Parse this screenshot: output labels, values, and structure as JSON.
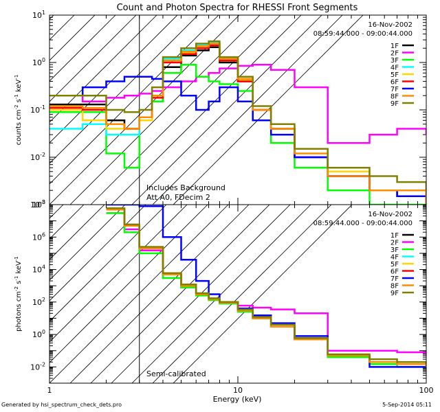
{
  "chart_data": {
    "type": "line",
    "title": "Count and Photon Spectra for RHESSI Front Segments",
    "xlabel": "Energy (keV)",
    "x_scale": "log",
    "xlim": [
      1,
      100
    ],
    "x_ticks": [
      "1",
      "10",
      "100"
    ],
    "x_tick_values": [
      1,
      10,
      100
    ],
    "legend_entries": [
      "1F",
      "2F",
      "3F",
      "4F",
      "5F",
      "6F",
      "7F",
      "8F",
      "9F"
    ],
    "series_colors": [
      "#000000",
      "#ff00ff",
      "#00ff00",
      "#00ffff",
      "#ffd700",
      "#ff0000",
      "#0000ff",
      "#ff8c00",
      "#808000"
    ],
    "panels": [
      {
        "id": "count",
        "ylabel_main": "counts cm",
        "ylabel_exp1": "-2",
        "ylabel_mid": " s",
        "ylabel_exp2": "-1",
        "ylabel_unit": " keV",
        "ylabel_exp3": "-1",
        "y_scale": "log",
        "ylim": [
          0.001,
          10
        ],
        "y_tick_labels": [
          {
            "value": 10,
            "base": "10",
            "exp": "1"
          },
          {
            "value": 1,
            "base": "10",
            "exp": "0"
          },
          {
            "value": 0.1,
            "base": "10",
            "exp": "-1"
          },
          {
            "value": 0.01,
            "base": "10",
            "exp": "-2"
          },
          {
            "value": 0.001,
            "base": "10",
            "exp": "-3"
          }
        ],
        "date": "16-Nov-2002",
        "time_range": "08:59:44.000 - 09:00:44.000",
        "annotation_line1": "Includes Background",
        "annotation_line2": "Att A0, FDecim 2",
        "hatched_region_keV": [
          1,
          3
        ],
        "series": [
          {
            "name": "1F",
            "x": [
              1,
              1.5,
              2,
              2.5,
              3,
              3.5,
              4,
              5,
              6,
              7,
              8,
              10,
              12,
              15,
              20,
              30,
              50,
              70,
              100
            ],
            "values": [
              0.13,
              0.13,
              0.06,
              0.04,
              0.07,
              0.15,
              0.8,
              1.4,
              1.8,
              2.1,
              1.0,
              0.4,
              0.1,
              0.04,
              0.01,
              0.004,
              0.002,
              0.0015,
              0.001
            ]
          },
          {
            "name": "2F",
            "x": [
              1,
              1.5,
              2,
              2.5,
              3,
              3.5,
              4,
              5,
              6,
              7,
              8,
              10,
              12,
              15,
              20,
              30,
              50,
              70,
              100
            ],
            "values": [
              0.2,
              0.15,
              0.18,
              0.2,
              0.22,
              0.25,
              0.3,
              0.4,
              0.5,
              0.6,
              0.75,
              0.85,
              0.9,
              0.7,
              0.3,
              0.02,
              0.03,
              0.04,
              0.03
            ]
          },
          {
            "name": "3F",
            "x": [
              1,
              1.5,
              2,
              2.5,
              3,
              3.5,
              4,
              5,
              6,
              7,
              8,
              10,
              12,
              15,
              20,
              30,
              50,
              70,
              100
            ],
            "values": [
              0.09,
              0.09,
              0.012,
              0.006,
              0.07,
              0.15,
              0.6,
              0.9,
              0.5,
              0.4,
              0.35,
              0.25,
              0.06,
              0.02,
              0.006,
              0.002,
              0.001,
              0.001,
              0.001
            ]
          },
          {
            "name": "4F",
            "x": [
              1,
              1.5,
              2,
              2.5,
              3,
              3.5,
              4,
              5,
              6,
              7,
              8,
              10,
              12,
              15,
              20,
              30,
              50,
              70,
              100
            ],
            "values": [
              0.04,
              0.05,
              0.03,
              0.03,
              0.06,
              0.2,
              1.2,
              1.8,
              2.3,
              2.6,
              1.2,
              0.45,
              0.1,
              0.04,
              0.01,
              0.005,
              0.002,
              0.002,
              0.001
            ]
          },
          {
            "name": "5F",
            "x": [
              1,
              1.5,
              2,
              2.5,
              3,
              3.5,
              4,
              5,
              6,
              7,
              8,
              10,
              12,
              15,
              20,
              30,
              50,
              70,
              100
            ],
            "values": [
              0.1,
              0.06,
              0.04,
              0.04,
              0.06,
              0.2,
              1.1,
              1.6,
              2.1,
              2.4,
              1.1,
              0.42,
              0.1,
              0.04,
              0.01,
              0.005,
              0.002,
              0.002,
              0.002
            ]
          },
          {
            "name": "6F",
            "x": [
              1,
              1.5,
              2,
              2.5,
              3,
              3.5,
              4,
              5,
              6,
              7,
              8,
              10,
              12,
              15,
              20,
              30,
              50,
              70,
              100
            ],
            "values": [
              0.11,
              0.1,
              0.05,
              0.04,
              0.07,
              0.18,
              1.0,
              1.5,
              2.0,
              2.3,
              1.1,
              0.4,
              0.1,
              0.04,
              0.01,
              0.004,
              0.002,
              0.002,
              0.001
            ]
          },
          {
            "name": "7F",
            "x": [
              1,
              1.5,
              2,
              2.5,
              3,
              3.5,
              4,
              5,
              6,
              7,
              8,
              10,
              12,
              15,
              20,
              30,
              50,
              70,
              100
            ],
            "values": [
              0.2,
              0.3,
              0.4,
              0.5,
              0.5,
              0.45,
              0.4,
              0.2,
              0.1,
              0.15,
              0.3,
              0.15,
              0.06,
              0.03,
              0.01,
              0.004,
              0.002,
              0.0015,
              0.001
            ]
          },
          {
            "name": "8F",
            "x": [
              1,
              1.5,
              2,
              2.5,
              3,
              3.5,
              4,
              5,
              6,
              7,
              8,
              10,
              12,
              15,
              20,
              30,
              50,
              70,
              100
            ],
            "values": [
              0.12,
              0.11,
              0.05,
              0.04,
              0.07,
              0.2,
              1.1,
              1.7,
              2.2,
              2.5,
              1.2,
              0.45,
              0.1,
              0.04,
              0.012,
              0.004,
              0.002,
              0.002,
              0.001
            ]
          },
          {
            "name": "9F",
            "x": [
              1,
              1.5,
              2,
              2.5,
              3,
              3.5,
              4,
              5,
              6,
              7,
              8,
              10,
              12,
              15,
              20,
              30,
              50,
              70,
              100
            ],
            "values": [
              0.2,
              0.2,
              0.1,
              0.09,
              0.1,
              0.3,
              1.3,
              2.0,
              2.5,
              2.8,
              1.3,
              0.5,
              0.12,
              0.05,
              0.015,
              0.006,
              0.004,
              0.003,
              0.002
            ]
          }
        ]
      },
      {
        "id": "photon",
        "ylabel_main": "photons cm",
        "ylabel_exp1": "-2",
        "ylabel_mid": " s",
        "ylabel_exp2": "-1",
        "ylabel_unit": " keV",
        "ylabel_exp3": "-1",
        "y_scale": "log",
        "ylim": [
          0.001,
          100000000
        ],
        "y_tick_labels": [
          {
            "value": 100000000,
            "base": "10",
            "exp": "8"
          },
          {
            "value": 1000000,
            "base": "10",
            "exp": "6"
          },
          {
            "value": 10000,
            "base": "10",
            "exp": "4"
          },
          {
            "value": 100,
            "base": "10",
            "exp": "2"
          },
          {
            "value": 1,
            "base": "10",
            "exp": "0"
          },
          {
            "value": 0.01,
            "base": "10",
            "exp": "-2"
          }
        ],
        "date": "16-Nov-2002",
        "time_range": "08:59:44.000 - 09:00:44.000",
        "annotation_line1": "Semi-calibrated",
        "hatched_region_keV": [
          1,
          3
        ],
        "series": [
          {
            "name": "1F",
            "x": [
              2,
              2.5,
              3,
              4,
              5,
              6,
              7,
              8,
              10,
              12,
              15,
              20,
              30,
              50,
              70,
              100
            ],
            "values": [
              50000000,
              5000000,
              200000,
              5000,
              1000,
              300,
              150,
              90,
              30,
              10,
              3,
              0.5,
              0.05,
              0.02,
              0.02,
              0.01
            ]
          },
          {
            "name": "2F",
            "x": [
              2,
              2.5,
              3,
              4,
              5,
              6,
              7,
              8,
              10,
              12,
              15,
              20,
              30,
              50,
              70,
              100
            ],
            "values": [
              30000000,
              3000000,
              150000,
              3000,
              800,
              300,
              150,
              100,
              60,
              45,
              35,
              20,
              0.1,
              0.1,
              0.08,
              0.05
            ]
          },
          {
            "name": "3F",
            "x": [
              2,
              2.5,
              3,
              4,
              5,
              6,
              7,
              8,
              10,
              12,
              15,
              20,
              30,
              50,
              70,
              100
            ],
            "values": [
              30000000,
              2000000,
              100000,
              3000,
              800,
              250,
              130,
              80,
              25,
              10,
              3,
              0.5,
              0.04,
              0.015,
              0.01,
              0.01
            ]
          },
          {
            "name": "4F",
            "x": [
              2,
              2.5,
              3,
              4,
              5,
              6,
              7,
              8,
              10,
              12,
              15,
              20,
              30,
              50,
              70,
              100
            ],
            "values": [
              50000000,
              5000000,
              200000,
              5000,
              1100,
              330,
              160,
              90,
              30,
              10,
              3,
              0.5,
              0.05,
              0.02,
              0.015,
              0.01
            ]
          },
          {
            "name": "5F",
            "x": [
              2,
              2.5,
              3,
              4,
              5,
              6,
              7,
              8,
              10,
              12,
              15,
              20,
              30,
              50,
              70,
              100
            ],
            "values": [
              50000000,
              5000000,
              200000,
              5000,
              1000,
              300,
              150,
              90,
              30,
              10,
              3,
              0.5,
              0.05,
              0.02,
              0.015,
              0.01
            ]
          },
          {
            "name": "6F",
            "x": [
              2,
              2.5,
              3,
              4,
              5,
              6,
              7,
              8,
              10,
              12,
              15,
              20,
              30,
              50,
              70,
              100
            ],
            "values": [
              50000000,
              5000000,
              200000,
              5000,
              1000,
              300,
              150,
              90,
              30,
              10,
              3,
              0.5,
              0.05,
              0.02,
              0.015,
              0.01
            ]
          },
          {
            "name": "7F",
            "x": [
              2,
              2.5,
              3,
              4,
              5,
              6,
              7,
              8,
              10,
              12,
              15,
              20,
              30,
              50,
              70,
              100
            ],
            "values": [
              100000000,
              100000000,
              80000000,
              1000000,
              40000,
              2000,
              300,
              100,
              40,
              15,
              5,
              0.8,
              0.05,
              0.01,
              0.01,
              0.01
            ]
          },
          {
            "name": "8F",
            "x": [
              2,
              2.5,
              3,
              4,
              5,
              6,
              7,
              8,
              10,
              12,
              15,
              20,
              30,
              50,
              70,
              100
            ],
            "values": [
              50000000,
              5000000,
              200000,
              5000,
              1000,
              300,
              150,
              90,
              30,
              10,
              3,
              0.5,
              0.05,
              0.02,
              0.015,
              0.01
            ]
          },
          {
            "name": "9F",
            "x": [
              2,
              2.5,
              3,
              4,
              5,
              6,
              7,
              8,
              10,
              12,
              15,
              20,
              30,
              50,
              70,
              100
            ],
            "values": [
              60000000,
              6000000,
              250000,
              6000,
              1200,
              350,
              170,
              100,
              35,
              12,
              4,
              0.6,
              0.06,
              0.03,
              0.02,
              0.015
            ]
          }
        ]
      }
    ]
  },
  "footer": {
    "generated_by": "Generated by hsi_spectrum_check_dets.pro",
    "timestamp": "5-Sep-2014 05:11"
  }
}
